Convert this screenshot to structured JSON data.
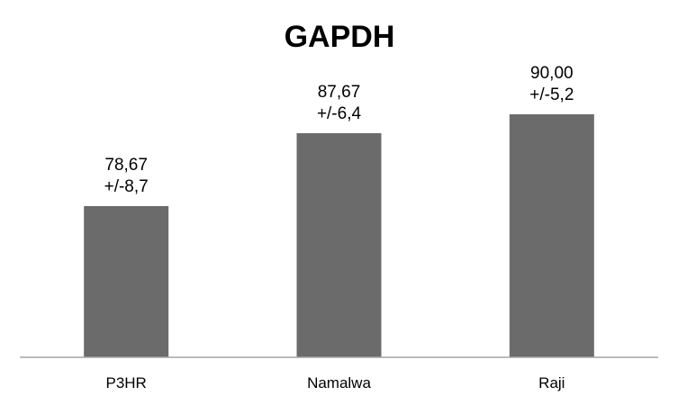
{
  "chart_data": {
    "type": "bar",
    "title": "GAPDH",
    "xlabel": "",
    "ylabel": "",
    "categories": [
      "P3HR",
      "Namalwa",
      "Raji"
    ],
    "values": [
      78.67,
      87.67,
      90.0
    ],
    "data_labels": [
      [
        "78,67",
        "+/-8,7"
      ],
      [
        "87,67",
        "+/-6,4"
      ],
      [
        "90,00",
        "+/-5,2"
      ]
    ],
    "ylim": [
      60,
      100
    ],
    "grid": false,
    "legend": "none",
    "y_axis_visible": false,
    "colors": {
      "bar": "#6b6b6b",
      "axis": "#a6a6a6"
    }
  }
}
